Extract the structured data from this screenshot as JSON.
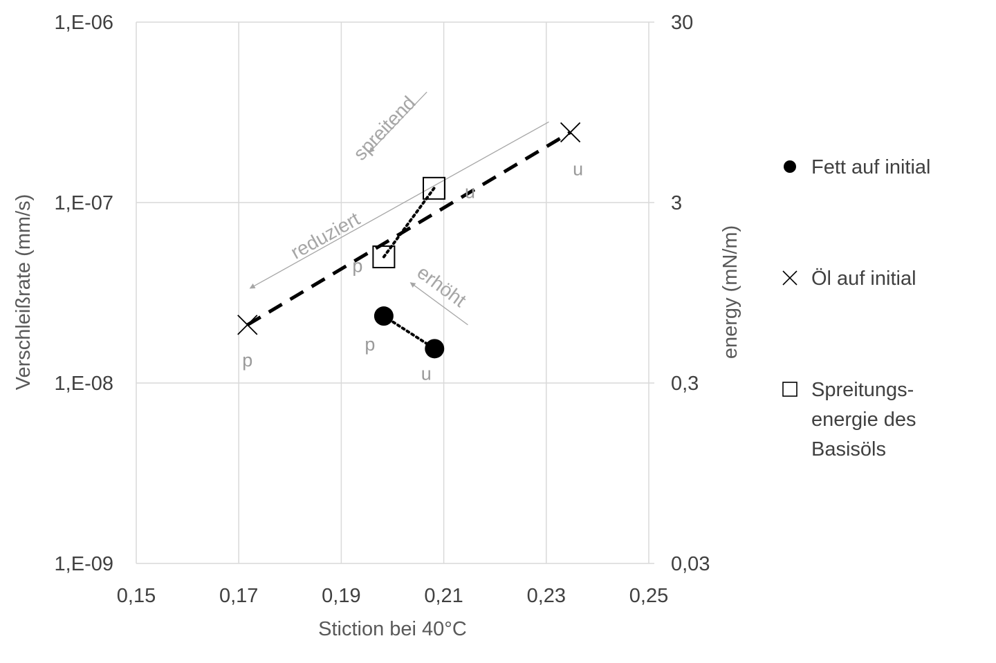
{
  "chart_data": {
    "type": "scatter",
    "xlabel": "Stiction bei 40°C",
    "ylabel": "Verschleißrate (mm/s)",
    "y2label": "energy (mN/m)",
    "xlim": [
      0.15,
      0.25
    ],
    "ylim": [
      1e-09,
      1e-06
    ],
    "y_scale": "log",
    "y2lim": [
      0.03,
      30
    ],
    "y2_scale": "log",
    "x_ticks": [
      0.15,
      0.17,
      0.19,
      0.21,
      0.23,
      0.25
    ],
    "x_tick_labels": [
      "0,15",
      "0,17",
      "0,19",
      "0,21",
      "0,23",
      "0,25"
    ],
    "y_tick_labels": [
      "1,E-09",
      "1,E-08",
      "1,E-07",
      "1,E-06"
    ],
    "y_ticks": [
      1e-09,
      1e-08,
      1e-07,
      1e-06
    ],
    "y2_tick_labels": [
      "0,03",
      "0,3",
      "3",
      "30"
    ],
    "y2_ticks": [
      0.03,
      0.3,
      3,
      30
    ],
    "grid": true,
    "legend_position": "right",
    "series": [
      {
        "name": "Fett auf initial",
        "marker": "circle-filled",
        "axis": "left",
        "connector": "dotted",
        "points": [
          {
            "x": 0.1983,
            "y": 2.35e-08,
            "label": "p"
          },
          {
            "x": 0.2082,
            "y": 1.55e-08,
            "label": "u"
          }
        ]
      },
      {
        "name": "Öl auf initial",
        "marker": "x",
        "axis": "left",
        "connector": "dashed",
        "points": [
          {
            "x": 0.1717,
            "y": 2.1e-08,
            "label": "p"
          },
          {
            "x": 0.2347,
            "y": 2.45e-07,
            "label": "u"
          }
        ]
      },
      {
        "name": "Spreitungs-energie des Basisöls",
        "marker": "square-open",
        "axis": "right",
        "connector": "dotted",
        "points": [
          {
            "x": 0.1983,
            "y": 1.5,
            "label": "p"
          },
          {
            "x": 0.2081,
            "y": 3.6,
            "label": "u"
          }
        ]
      }
    ],
    "annotations": [
      {
        "text": "spreitend",
        "arrow_from": [
          0.2067,
          4.1e-07
        ],
        "arrow_to": [
          0.1955,
          1.9e-07
        ]
      },
      {
        "text": "reduziert",
        "arrow_from": [
          0.2305,
          2.8e-07
        ],
        "arrow_to": [
          0.1722,
          3.35e-08
        ]
      },
      {
        "text": "erhöht",
        "arrow_from": [
          0.2147,
          2.1e-08
        ],
        "arrow_to": [
          0.2035,
          3.6e-08
        ]
      }
    ]
  },
  "legend": {
    "items": [
      {
        "lines": [
          "Fett auf initial"
        ],
        "icon": "filled-circle-icon"
      },
      {
        "lines": [
          "Öl auf initial"
        ],
        "icon": "x-mark-icon"
      },
      {
        "lines": [
          "Spreitungs-",
          "energie des",
          "Basisöls"
        ],
        "icon": "open-square-icon"
      }
    ]
  },
  "colors": {
    "markers": "#000000",
    "grid": "#d9d9d9",
    "annotation": "#a6a6a6",
    "point_labels": "#9a9a9a",
    "tick_text": "#404040",
    "axis_title": "#595959"
  }
}
